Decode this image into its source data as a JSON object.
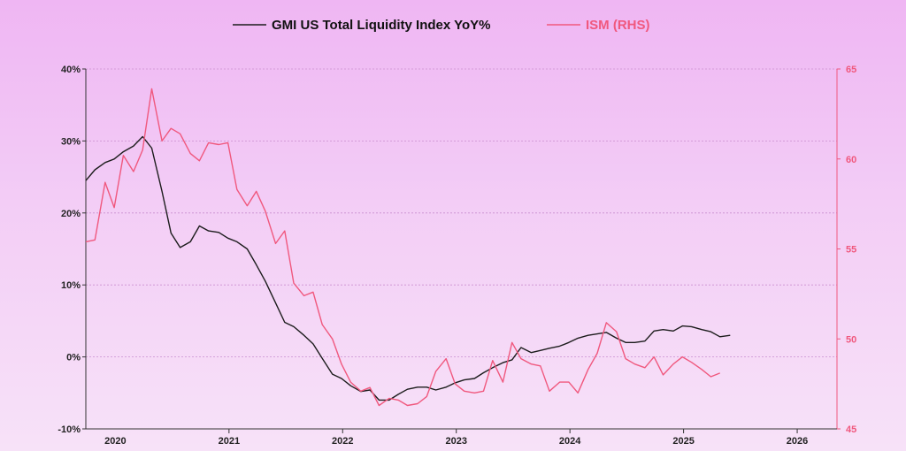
{
  "chart_data": {
    "type": "line",
    "legend_position": "top-center",
    "grid": true,
    "colors": {
      "liquidity": "#1c1c1c",
      "ism": "#f0587e",
      "grid": "#c98fd0",
      "axis_left": "#333333",
      "axis_right": "#f0587e"
    },
    "x_axis": {
      "range": [
        2019.94,
        2026.55
      ],
      "ticks": [
        {
          "label": "2020",
          "at": 2020.2
        },
        {
          "label": "2021",
          "at": 2021.2
        },
        {
          "label": "2022",
          "at": 2022.2
        },
        {
          "label": "2023",
          "at": 2023.2
        },
        {
          "label": "2024",
          "at": 2024.2
        },
        {
          "label": "2025",
          "at": 2025.2
        },
        {
          "label": "2026",
          "at": 2026.2
        }
      ]
    },
    "y_left": {
      "range": [
        -10,
        40
      ],
      "ticks": [
        {
          "value": 40,
          "label": "40%"
        },
        {
          "value": 30,
          "label": "30%"
        },
        {
          "value": 20,
          "label": "20%"
        },
        {
          "value": 10,
          "label": "10%"
        },
        {
          "value": 0,
          "label": "0%"
        },
        {
          "value": -10,
          "label": "-10%"
        }
      ]
    },
    "y_right": {
      "range": [
        45,
        65
      ],
      "ticks": [
        {
          "value": 65,
          "label": "65"
        },
        {
          "value": 60,
          "label": "60"
        },
        {
          "value": 55,
          "label": "55"
        },
        {
          "value": 50,
          "label": "50"
        },
        {
          "value": 45,
          "label": "45"
        }
      ]
    },
    "series": [
      {
        "name": "GMI US Total Liquidity Index YoY%",
        "axis": "left",
        "points": [
          [
            2019.94,
            24.5
          ],
          [
            2020.02,
            26.0
          ],
          [
            2020.11,
            27.0
          ],
          [
            2020.19,
            27.5
          ],
          [
            2020.27,
            28.5
          ],
          [
            2020.36,
            29.3
          ],
          [
            2020.44,
            30.6
          ],
          [
            2020.52,
            29.0
          ],
          [
            2020.61,
            23.0
          ],
          [
            2020.69,
            17.2
          ],
          [
            2020.77,
            15.2
          ],
          [
            2020.86,
            16.0
          ],
          [
            2020.94,
            18.2
          ],
          [
            2021.02,
            17.5
          ],
          [
            2021.11,
            17.3
          ],
          [
            2021.19,
            16.5
          ],
          [
            2021.27,
            16.0
          ],
          [
            2021.36,
            15.0
          ],
          [
            2021.44,
            12.8
          ],
          [
            2021.52,
            10.5
          ],
          [
            2021.61,
            7.5
          ],
          [
            2021.69,
            4.8
          ],
          [
            2021.77,
            4.2
          ],
          [
            2021.86,
            3.0
          ],
          [
            2021.94,
            1.8
          ],
          [
            2022.02,
            -0.2
          ],
          [
            2022.11,
            -2.4
          ],
          [
            2022.19,
            -3.0
          ],
          [
            2022.27,
            -4.0
          ],
          [
            2022.36,
            -4.8
          ],
          [
            2022.44,
            -4.6
          ],
          [
            2022.52,
            -6.0
          ],
          [
            2022.61,
            -6.0
          ],
          [
            2022.69,
            -5.2
          ],
          [
            2022.77,
            -4.5
          ],
          [
            2022.86,
            -4.2
          ],
          [
            2022.94,
            -4.2
          ],
          [
            2023.02,
            -4.6
          ],
          [
            2023.11,
            -4.2
          ],
          [
            2023.19,
            -3.6
          ],
          [
            2023.27,
            -3.2
          ],
          [
            2023.36,
            -3.0
          ],
          [
            2023.44,
            -2.2
          ],
          [
            2023.52,
            -1.5
          ],
          [
            2023.61,
            -0.8
          ],
          [
            2023.69,
            -0.4
          ],
          [
            2023.77,
            1.3
          ],
          [
            2023.86,
            0.6
          ],
          [
            2023.94,
            0.9
          ],
          [
            2024.02,
            1.2
          ],
          [
            2024.11,
            1.5
          ],
          [
            2024.19,
            2.0
          ],
          [
            2024.27,
            2.6
          ],
          [
            2024.36,
            3.0
          ],
          [
            2024.44,
            3.2
          ],
          [
            2024.52,
            3.4
          ],
          [
            2024.61,
            2.6
          ],
          [
            2024.69,
            2.0
          ],
          [
            2024.77,
            2.0
          ],
          [
            2024.86,
            2.2
          ],
          [
            2024.94,
            3.6
          ],
          [
            2025.02,
            3.8
          ],
          [
            2025.11,
            3.6
          ],
          [
            2025.19,
            4.3
          ],
          [
            2025.27,
            4.2
          ],
          [
            2025.36,
            3.8
          ],
          [
            2025.44,
            3.5
          ],
          [
            2025.52,
            2.8
          ],
          [
            2025.61,
            3.0
          ]
        ]
      },
      {
        "name": "ISM (RHS)",
        "axis": "right",
        "points": [
          [
            2019.94,
            55.4
          ],
          [
            2020.02,
            55.5
          ],
          [
            2020.11,
            58.7
          ],
          [
            2020.19,
            57.3
          ],
          [
            2020.27,
            60.2
          ],
          [
            2020.36,
            59.3
          ],
          [
            2020.44,
            60.5
          ],
          [
            2020.52,
            63.9
          ],
          [
            2020.61,
            61.0
          ],
          [
            2020.69,
            61.7
          ],
          [
            2020.77,
            61.4
          ],
          [
            2020.86,
            60.3
          ],
          [
            2020.94,
            59.9
          ],
          [
            2021.02,
            60.9
          ],
          [
            2021.11,
            60.8
          ],
          [
            2021.19,
            60.9
          ],
          [
            2021.27,
            58.3
          ],
          [
            2021.36,
            57.4
          ],
          [
            2021.44,
            58.2
          ],
          [
            2021.52,
            57.1
          ],
          [
            2021.61,
            55.3
          ],
          [
            2021.69,
            56.0
          ],
          [
            2021.77,
            53.1
          ],
          [
            2021.86,
            52.4
          ],
          [
            2021.94,
            52.6
          ],
          [
            2022.02,
            50.8
          ],
          [
            2022.11,
            50.0
          ],
          [
            2022.19,
            48.6
          ],
          [
            2022.27,
            47.6
          ],
          [
            2022.36,
            47.1
          ],
          [
            2022.44,
            47.3
          ],
          [
            2022.52,
            46.3
          ],
          [
            2022.61,
            46.7
          ],
          [
            2022.69,
            46.6
          ],
          [
            2022.77,
            46.3
          ],
          [
            2022.86,
            46.4
          ],
          [
            2022.94,
            46.8
          ],
          [
            2023.02,
            48.2
          ],
          [
            2023.11,
            48.9
          ],
          [
            2023.19,
            47.5
          ],
          [
            2023.27,
            47.1
          ],
          [
            2023.36,
            47.0
          ],
          [
            2023.44,
            47.1
          ],
          [
            2023.52,
            48.8
          ],
          [
            2023.61,
            47.6
          ],
          [
            2023.69,
            49.8
          ],
          [
            2023.77,
            48.9
          ],
          [
            2023.86,
            48.6
          ],
          [
            2023.94,
            48.5
          ],
          [
            2024.02,
            47.1
          ],
          [
            2024.11,
            47.6
          ],
          [
            2024.19,
            47.6
          ],
          [
            2024.27,
            47.0
          ],
          [
            2024.36,
            48.3
          ],
          [
            2024.44,
            49.2
          ],
          [
            2024.52,
            50.9
          ],
          [
            2024.61,
            50.4
          ],
          [
            2024.69,
            48.9
          ],
          [
            2024.77,
            48.6
          ],
          [
            2024.86,
            48.4
          ],
          [
            2024.94,
            49.0
          ],
          [
            2025.02,
            48.0
          ],
          [
            2025.11,
            48.6
          ],
          [
            2025.19,
            49.0
          ],
          [
            2025.27,
            48.7
          ],
          [
            2025.36,
            48.3
          ],
          [
            2025.44,
            47.9
          ],
          [
            2025.52,
            48.1
          ]
        ]
      }
    ]
  }
}
